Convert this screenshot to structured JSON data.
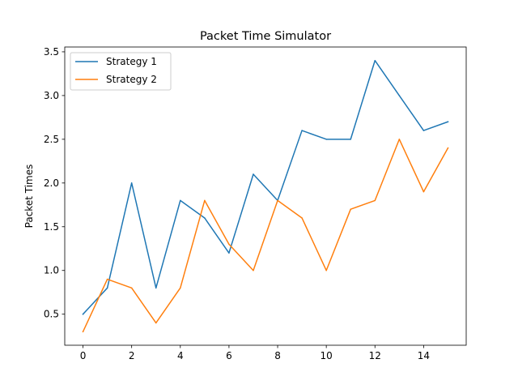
{
  "chart_data": {
    "type": "line",
    "title": "Packet Time Simulator",
    "xlabel": "",
    "ylabel": "Packet Times",
    "x": [
      0,
      1,
      2,
      3,
      4,
      5,
      6,
      7,
      8,
      9,
      10,
      11,
      12,
      13,
      14,
      15
    ],
    "series": [
      {
        "name": "Strategy 1",
        "color": "#1f77b4",
        "values": [
          0.5,
          0.8,
          2.0,
          0.8,
          1.8,
          1.6,
          1.2,
          2.1,
          1.8,
          2.6,
          2.5,
          2.5,
          3.4,
          3.0,
          2.6,
          2.7
        ]
      },
      {
        "name": "Strategy 2",
        "color": "#ff7f0e",
        "values": [
          0.3,
          0.9,
          0.8,
          0.4,
          0.8,
          1.8,
          1.3,
          1.0,
          1.8,
          1.6,
          1.0,
          1.7,
          1.8,
          2.5,
          1.9,
          2.4
        ]
      }
    ],
    "xticks": [
      0,
      2,
      4,
      6,
      8,
      10,
      12,
      14
    ],
    "yticks": [
      0.5,
      1.0,
      1.5,
      2.0,
      2.5,
      3.0,
      3.5
    ],
    "xlim": [
      -0.75,
      15.75
    ],
    "ylim": [
      0.145,
      3.555
    ],
    "grid": false,
    "legend_position": "upper left"
  }
}
